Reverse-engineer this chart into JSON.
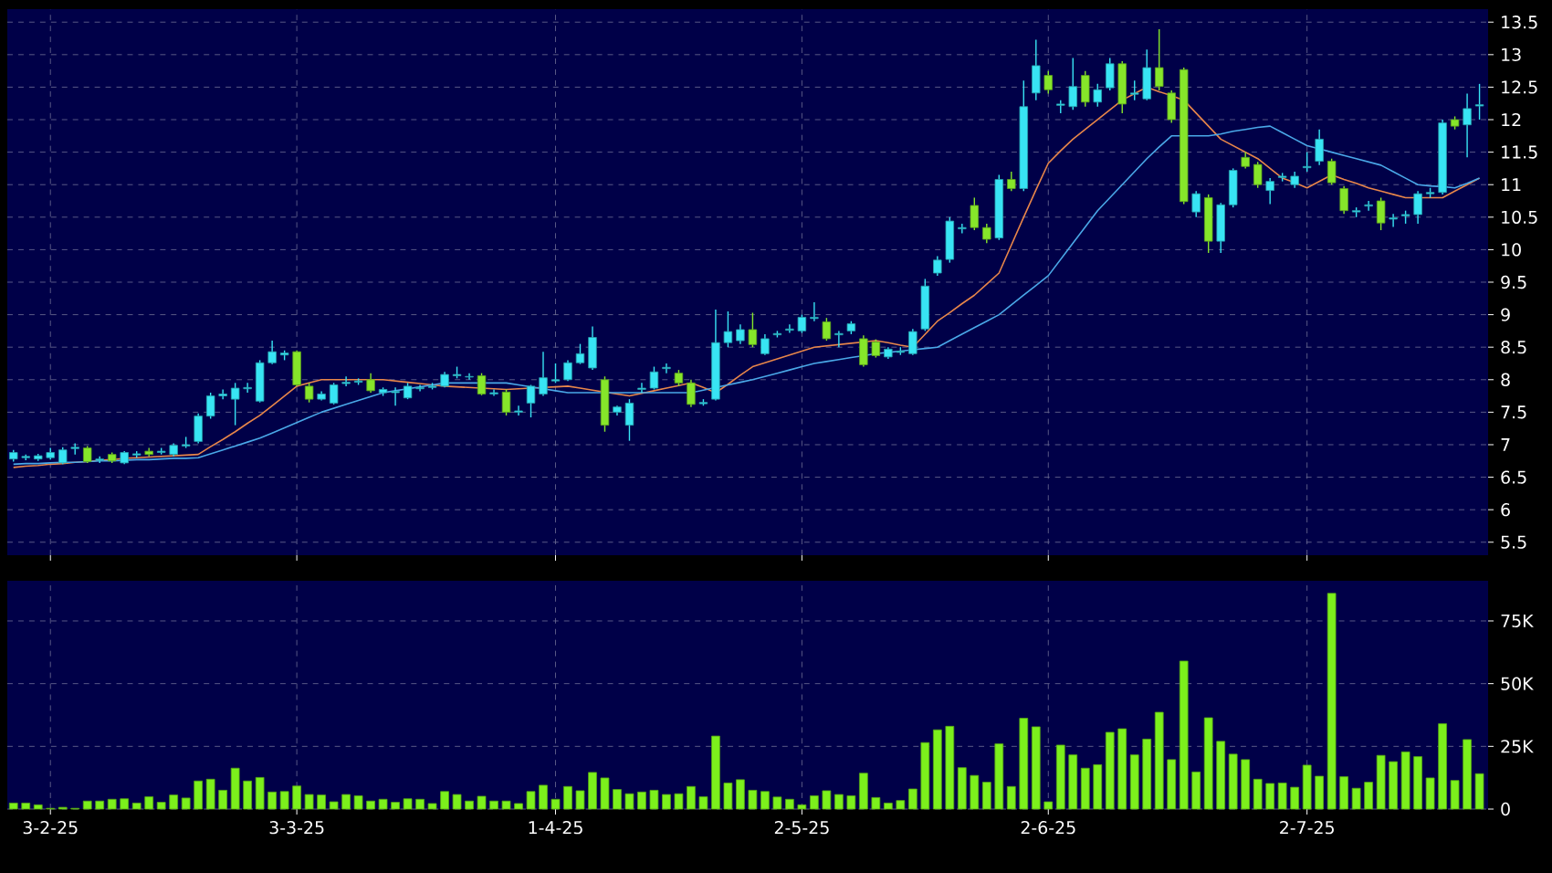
{
  "chart_data": [
    {
      "type": "candlestick",
      "grid": true,
      "tick_labels": "y",
      "categories": [
        null,
        null,
        null,
        null,
        null,
        null,
        null,
        null,
        null,
        null,
        null,
        null,
        null,
        null,
        null,
        null,
        null,
        null,
        null,
        null,
        null,
        null,
        null,
        null,
        null,
        null,
        null,
        null,
        null,
        null,
        null,
        null,
        null,
        null,
        null,
        null,
        null,
        null,
        null,
        null,
        null,
        null,
        null,
        null,
        null,
        null,
        null,
        null,
        null,
        null,
        null,
        null,
        null,
        null,
        null,
        null,
        null,
        null,
        null,
        null,
        null,
        null,
        null,
        null,
        null,
        null,
        null,
        null,
        null,
        null,
        null,
        null,
        null,
        null,
        null,
        null,
        null,
        null,
        null,
        null,
        null,
        null,
        null,
        null,
        null,
        null,
        null,
        null,
        null,
        null,
        null,
        null,
        null,
        null,
        null,
        null,
        null,
        null,
        null,
        null,
        null,
        null,
        null,
        null,
        null,
        null,
        null,
        null,
        null,
        null,
        null,
        null,
        null,
        null,
        null,
        null,
        null,
        null,
        null,
        null
      ],
      "ohlc": [
        [
          6.78,
          6.92,
          6.74,
          6.88
        ],
        [
          6.8,
          6.85,
          6.76,
          6.82
        ],
        [
          6.78,
          6.86,
          6.75,
          6.83
        ],
        [
          6.8,
          6.95,
          6.77,
          6.88
        ],
        [
          6.72,
          6.96,
          6.7,
          6.92
        ],
        [
          6.94,
          7.02,
          6.85,
          6.96
        ],
        [
          6.95,
          6.98,
          6.72,
          6.74
        ],
        [
          6.76,
          6.82,
          6.72,
          6.78
        ],
        [
          6.85,
          6.88,
          6.72,
          6.75
        ],
        [
          6.72,
          6.9,
          6.7,
          6.88
        ],
        [
          6.84,
          6.9,
          6.8,
          6.86
        ],
        [
          6.9,
          6.95,
          6.82,
          6.85
        ],
        [
          6.88,
          6.95,
          6.85,
          6.9
        ],
        [
          6.85,
          7.02,
          6.82,
          6.99
        ],
        [
          6.98,
          7.12,
          6.95,
          7.0
        ],
        [
          7.05,
          7.48,
          7.02,
          7.44
        ],
        [
          7.44,
          7.8,
          7.4,
          7.75
        ],
        [
          7.75,
          7.85,
          7.7,
          7.78
        ],
        [
          7.7,
          7.95,
          7.3,
          7.87
        ],
        [
          7.86,
          7.95,
          7.8,
          7.88
        ],
        [
          7.67,
          8.3,
          7.65,
          8.26
        ],
        [
          8.26,
          8.6,
          8.24,
          8.43
        ],
        [
          8.38,
          8.45,
          8.3,
          8.41
        ],
        [
          8.43,
          8.45,
          7.9,
          7.92
        ],
        [
          7.9,
          7.95,
          7.65,
          7.7
        ],
        [
          7.7,
          7.82,
          7.68,
          7.78
        ],
        [
          7.64,
          7.95,
          7.62,
          7.92
        ],
        [
          7.94,
          8.05,
          7.9,
          7.96
        ],
        [
          7.96,
          8.02,
          7.92,
          7.98
        ],
        [
          8.0,
          8.1,
          7.8,
          7.83
        ],
        [
          7.8,
          7.88,
          7.75,
          7.85
        ],
        [
          7.8,
          7.88,
          7.6,
          7.82
        ],
        [
          7.72,
          7.95,
          7.7,
          7.9
        ],
        [
          7.86,
          7.92,
          7.82,
          7.88
        ],
        [
          7.88,
          7.95,
          7.85,
          7.9
        ],
        [
          7.9,
          8.12,
          7.88,
          8.08
        ],
        [
          8.06,
          8.2,
          8.02,
          8.08
        ],
        [
          8.04,
          8.1,
          8.0,
          8.05
        ],
        [
          8.06,
          8.1,
          7.76,
          7.78
        ],
        [
          7.78,
          7.85,
          7.75,
          7.8
        ],
        [
          7.81,
          7.85,
          7.45,
          7.5
        ],
        [
          7.5,
          7.6,
          7.45,
          7.52
        ],
        [
          7.64,
          7.92,
          7.42,
          7.9
        ],
        [
          7.78,
          8.43,
          7.75,
          8.03
        ],
        [
          7.98,
          8.25,
          7.95,
          8.0
        ],
        [
          8.0,
          8.3,
          7.98,
          8.26
        ],
        [
          8.26,
          8.55,
          8.24,
          8.4
        ],
        [
          8.18,
          8.82,
          8.15,
          8.65
        ],
        [
          8.0,
          8.05,
          7.2,
          7.3
        ],
        [
          7.5,
          7.6,
          7.45,
          7.58
        ],
        [
          7.3,
          7.7,
          7.06,
          7.64
        ],
        [
          7.85,
          7.95,
          7.8,
          7.87
        ],
        [
          7.87,
          8.2,
          7.85,
          8.12
        ],
        [
          8.17,
          8.25,
          8.1,
          8.19
        ],
        [
          8.1,
          8.15,
          7.9,
          7.95
        ],
        [
          7.95,
          8.0,
          7.58,
          7.62
        ],
        [
          7.63,
          7.7,
          7.6,
          7.65
        ],
        [
          7.7,
          9.08,
          7.68,
          8.57
        ],
        [
          8.57,
          9.05,
          8.5,
          8.74
        ],
        [
          8.6,
          8.85,
          8.55,
          8.77
        ],
        [
          8.77,
          9.03,
          8.5,
          8.54
        ],
        [
          8.4,
          8.7,
          8.38,
          8.63
        ],
        [
          8.69,
          8.75,
          8.65,
          8.71
        ],
        [
          8.76,
          8.85,
          8.72,
          8.78
        ],
        [
          8.75,
          9.0,
          8.72,
          8.96
        ],
        [
          8.94,
          9.19,
          8.9,
          8.96
        ],
        [
          8.89,
          8.95,
          8.6,
          8.63
        ],
        [
          8.69,
          8.75,
          8.5,
          8.71
        ],
        [
          8.75,
          8.9,
          8.7,
          8.86
        ],
        [
          8.63,
          8.68,
          8.2,
          8.23
        ],
        [
          8.58,
          8.62,
          8.34,
          8.37
        ],
        [
          8.35,
          8.5,
          8.32,
          8.47
        ],
        [
          8.42,
          8.5,
          8.38,
          8.44
        ],
        [
          8.4,
          8.78,
          8.38,
          8.74
        ],
        [
          8.78,
          9.55,
          8.75,
          9.44
        ],
        [
          9.64,
          9.9,
          9.6,
          9.84
        ],
        [
          9.85,
          10.5,
          9.8,
          10.44
        ],
        [
          10.32,
          10.4,
          10.25,
          10.34
        ],
        [
          10.68,
          10.8,
          10.3,
          10.34
        ],
        [
          10.34,
          10.4,
          10.1,
          10.16
        ],
        [
          10.18,
          11.15,
          10.15,
          11.08
        ],
        [
          11.08,
          11.2,
          10.9,
          10.94
        ],
        [
          10.94,
          12.6,
          10.9,
          12.2
        ],
        [
          12.41,
          13.23,
          12.3,
          12.83
        ],
        [
          12.68,
          12.75,
          12.4,
          12.46
        ],
        [
          12.22,
          12.3,
          12.1,
          12.24
        ],
        [
          12.2,
          12.95,
          12.15,
          12.51
        ],
        [
          12.68,
          12.75,
          12.2,
          12.27
        ],
        [
          12.27,
          12.55,
          12.2,
          12.46
        ],
        [
          12.49,
          12.95,
          12.45,
          12.86
        ],
        [
          12.86,
          12.9,
          12.1,
          12.24
        ],
        [
          12.39,
          12.6,
          12.3,
          12.41
        ],
        [
          12.32,
          13.08,
          12.3,
          12.8
        ],
        [
          12.8,
          13.39,
          12.45,
          12.51
        ],
        [
          12.41,
          12.45,
          11.95,
          12.0
        ],
        [
          12.77,
          12.8,
          10.7,
          10.74
        ],
        [
          10.58,
          10.9,
          10.5,
          10.86
        ],
        [
          10.8,
          10.85,
          9.95,
          10.13
        ],
        [
          10.13,
          10.72,
          9.95,
          10.69
        ],
        [
          10.69,
          11.25,
          10.65,
          11.22
        ],
        [
          11.42,
          11.5,
          11.25,
          11.28
        ],
        [
          11.31,
          11.35,
          10.95,
          11.0
        ],
        [
          10.91,
          11.1,
          10.7,
          11.05
        ],
        [
          11.11,
          11.18,
          11.05,
          11.13
        ],
        [
          11.0,
          11.2,
          10.95,
          11.13
        ],
        [
          11.26,
          11.5,
          11.2,
          11.28
        ],
        [
          11.36,
          11.85,
          11.3,
          11.7
        ],
        [
          11.36,
          11.4,
          11.0,
          11.03
        ],
        [
          10.94,
          10.98,
          10.55,
          10.6
        ],
        [
          10.58,
          10.65,
          10.5,
          10.6
        ],
        [
          10.67,
          10.75,
          10.6,
          10.69
        ],
        [
          10.75,
          10.8,
          10.3,
          10.41
        ],
        [
          10.47,
          10.55,
          10.35,
          10.49
        ],
        [
          10.52,
          10.6,
          10.4,
          10.54
        ],
        [
          10.54,
          10.9,
          10.4,
          10.86
        ],
        [
          10.86,
          10.95,
          10.8,
          10.88
        ],
        [
          10.88,
          12.0,
          10.85,
          11.95
        ],
        [
          12.0,
          12.05,
          11.85,
          11.9
        ],
        [
          11.92,
          12.4,
          11.42,
          12.17
        ],
        [
          12.21,
          12.55,
          12.0,
          12.23
        ]
      ],
      "colors": [
        "#38e4f4",
        "#38e4f4",
        "#38e4f4",
        "#38e4f4",
        "#38e4f4",
        "#38e4f4",
        "#86e62a",
        "#38e4f4",
        "#86e62a",
        "#38e4f4",
        "#38e4f4",
        "#86e62a",
        "#38e4f4",
        "#38e4f4",
        "#38e4f4",
        "#38e4f4",
        "#38e4f4",
        "#38e4f4",
        "#38e4f4",
        "#38e4f4",
        "#38e4f4",
        "#38e4f4",
        "#38e4f4",
        "#86e62a",
        "#86e62a",
        "#38e4f4",
        "#38e4f4",
        "#38e4f4",
        "#38e4f4",
        "#86e62a",
        "#38e4f4",
        "#38e4f4",
        "#38e4f4",
        "#38e4f4",
        "#38e4f4",
        "#38e4f4",
        "#38e4f4",
        "#38e4f4",
        "#86e62a",
        "#38e4f4",
        "#86e62a",
        "#38e4f4",
        "#38e4f4",
        "#38e4f4",
        "#38e4f4",
        "#38e4f4",
        "#38e4f4",
        "#38e4f4",
        "#86e62a",
        "#38e4f4",
        "#38e4f4",
        "#38e4f4",
        "#38e4f4",
        "#38e4f4",
        "#86e62a",
        "#86e62a",
        "#38e4f4",
        "#38e4f4",
        "#38e4f4",
        "#38e4f4",
        "#86e62a",
        "#38e4f4",
        "#38e4f4",
        "#38e4f4",
        "#38e4f4",
        "#38e4f4",
        "#86e62a",
        "#38e4f4",
        "#38e4f4",
        "#86e62a",
        "#86e62a",
        "#38e4f4",
        "#38e4f4",
        "#38e4f4",
        "#38e4f4",
        "#38e4f4",
        "#38e4f4",
        "#38e4f4",
        "#86e62a",
        "#86e62a",
        "#38e4f4",
        "#86e62a",
        "#38e4f4",
        "#38e4f4",
        "#86e62a",
        "#38e4f4",
        "#38e4f4",
        "#86e62a",
        "#38e4f4",
        "#38e4f4",
        "#86e62a",
        "#38e4f4",
        "#38e4f4",
        "#86e62a",
        "#86e62a",
        "#86e62a",
        "#38e4f4",
        "#86e62a",
        "#38e4f4",
        "#38e4f4",
        "#86e62a",
        "#86e62a",
        "#38e4f4",
        "#38e4f4",
        "#38e4f4",
        "#38e4f4",
        "#38e4f4",
        "#86e62a",
        "#86e62a",
        "#38e4f4",
        "#38e4f4",
        "#86e62a",
        "#38e4f4",
        "#38e4f4",
        "#38e4f4",
        "#38e4f4",
        "#38e4f4",
        "#86e62a",
        "#38e4f4",
        "#38e4f4"
      ],
      "series": [
        {
          "type": "line",
          "color": "#e8864a",
          "values": [
            6.65,
            6.67,
            6.68,
            6.7,
            6.71,
            6.73,
            6.74,
            6.76,
            6.77,
            6.79,
            6.8,
            6.81,
            6.82,
            6.83,
            6.84,
            6.85,
            6.97,
            7.08,
            7.2,
            7.33,
            7.45,
            7.6,
            7.75,
            7.9,
            7.95,
            8.0,
            8.0,
            8.0,
            8.0,
            8.0,
            8.0,
            7.98,
            7.96,
            7.94,
            7.92,
            7.9,
            7.89,
            7.88,
            7.87,
            7.86,
            7.85,
            7.86,
            7.87,
            7.88,
            7.89,
            7.9,
            7.87,
            7.84,
            7.81,
            7.78,
            7.75,
            7.79,
            7.83,
            7.87,
            7.91,
            7.95,
            7.88,
            7.8,
            7.93,
            8.07,
            8.2,
            8.26,
            8.32,
            8.38,
            8.44,
            8.5,
            8.52,
            8.54,
            8.56,
            8.58,
            8.6,
            8.57,
            8.53,
            8.5,
            8.7,
            8.9,
            9.03,
            9.17,
            9.3,
            9.47,
            9.64,
            10.07,
            10.5,
            10.92,
            11.33,
            11.52,
            11.7,
            11.85,
            12.0,
            12.15,
            12.3,
            12.4,
            12.5,
            12.43,
            12.37,
            12.3,
            12.1,
            11.9,
            11.7,
            11.6,
            11.5,
            11.4,
            11.25,
            11.1,
            11.03,
            10.95,
            11.05,
            11.15,
            11.08,
            11.02,
            10.95,
            10.9,
            10.85,
            10.8,
            10.8,
            10.8,
            10.8,
            10.9,
            11.0,
            11.1
          ]
        },
        {
          "type": "line",
          "color": "#4aa8e8",
          "values": [
            6.7,
            6.71,
            6.71,
            6.72,
            6.73,
            6.73,
            6.74,
            6.75,
            6.75,
            6.76,
            6.77,
            6.77,
            6.78,
            6.79,
            6.79,
            6.8,
            6.86,
            6.92,
            6.98,
            7.04,
            7.1,
            7.18,
            7.26,
            7.34,
            7.42,
            7.5,
            7.56,
            7.62,
            7.68,
            7.74,
            7.8,
            7.83,
            7.86,
            7.89,
            7.92,
            7.95,
            7.95,
            7.95,
            7.95,
            7.95,
            7.95,
            7.92,
            7.89,
            7.86,
            7.83,
            7.8,
            7.8,
            7.8,
            7.8,
            7.8,
            7.8,
            7.8,
            7.8,
            7.8,
            7.8,
            7.8,
            7.84,
            7.88,
            7.92,
            7.96,
            8.0,
            8.05,
            8.1,
            8.15,
            8.2,
            8.25,
            8.28,
            8.31,
            8.34,
            8.37,
            8.4,
            8.42,
            8.44,
            8.46,
            8.48,
            8.5,
            8.6,
            8.7,
            8.8,
            8.9,
            9.0,
            9.15,
            9.3,
            9.45,
            9.6,
            9.85,
            10.1,
            10.35,
            10.6,
            10.8,
            11.0,
            11.2,
            11.4,
            11.58,
            11.75,
            11.75,
            11.75,
            11.75,
            11.78,
            11.82,
            11.85,
            11.88,
            11.9,
            11.8,
            11.7,
            11.6,
            11.55,
            11.5,
            11.45,
            11.4,
            11.35,
            11.3,
            11.2,
            11.1,
            11.0,
            10.98,
            10.97,
            10.95,
            11.02,
            11.1
          ]
        }
      ],
      "ylim": [
        5.3,
        13.7
      ],
      "yticks": [
        5.5,
        6,
        6.5,
        7,
        7.5,
        8,
        8.5,
        9,
        9.5,
        10,
        10.5,
        11,
        11.5,
        12,
        12.5,
        13,
        13.5
      ]
    },
    {
      "type": "bar",
      "grid": true,
      "color": "#7cf01c",
      "categories": [
        null,
        null,
        null,
        "3-2-25",
        null,
        null,
        null,
        null,
        null,
        null,
        null,
        null,
        null,
        null,
        null,
        null,
        null,
        null,
        null,
        null,
        null,
        null,
        null,
        "3-3-25",
        null,
        null,
        null,
        null,
        null,
        null,
        null,
        null,
        null,
        null,
        null,
        null,
        null,
        null,
        null,
        null,
        null,
        null,
        null,
        null,
        "1-4-25",
        null,
        null,
        null,
        null,
        null,
        null,
        null,
        null,
        null,
        null,
        null,
        null,
        null,
        null,
        null,
        null,
        null,
        null,
        null,
        "2-5-25",
        null,
        null,
        null,
        null,
        null,
        null,
        null,
        null,
        null,
        null,
        null,
        null,
        null,
        null,
        null,
        null,
        null,
        null,
        null,
        "2-6-25",
        null,
        null,
        null,
        null,
        null,
        null,
        null,
        null,
        null,
        null,
        null,
        null,
        null,
        null,
        null,
        null,
        null,
        null,
        null,
        null,
        "2-7-25",
        null,
        null,
        null,
        null,
        null,
        null,
        null,
        null,
        null,
        null,
        null,
        null,
        null,
        null
      ],
      "values": [
        2400,
        2400,
        1700,
        300,
        700,
        300,
        3200,
        3200,
        3900,
        4100,
        2400,
        4900,
        2700,
        5600,
        4400,
        11200,
        11900,
        7500,
        16300,
        11200,
        12600,
        6800,
        7000,
        9200,
        5800,
        5600,
        2900,
        5800,
        5300,
        3200,
        3900,
        2700,
        4100,
        3900,
        2200,
        7000,
        5800,
        3200,
        5100,
        3200,
        3200,
        2200,
        7000,
        9500,
        3900,
        9000,
        7300,
        14600,
        12400,
        7800,
        6100,
        6800,
        7500,
        5800,
        6100,
        9000,
        4900,
        29100,
        10400,
        11700,
        7500,
        7000,
        4800,
        3900,
        1700,
        5300,
        7300,
        5800,
        5300,
        14300,
        4600,
        2400,
        3400,
        8000,
        26500,
        31600,
        33000,
        16500,
        13400,
        10700,
        26000,
        9000,
        36200,
        32800,
        2900,
        25500,
        21600,
        16300,
        17700,
        30600,
        32000,
        21600,
        27900,
        38600,
        19700,
        59000,
        14800,
        36400,
        27000,
        21900,
        19700,
        11900,
        10200,
        10400,
        8700,
        17500,
        13100,
        86000,
        12900,
        8300,
        10700,
        21400,
        18900,
        22800,
        20900,
        12400,
        34000,
        11400,
        27700,
        14100
      ],
      "ylim": [
        0,
        91000
      ],
      "yticks": [
        0,
        {
          "value": 25000,
          "label": "25K"
        },
        {
          "value": 50000,
          "label": "50K"
        },
        {
          "value": 75000,
          "label": "75K"
        }
      ]
    }
  ]
}
